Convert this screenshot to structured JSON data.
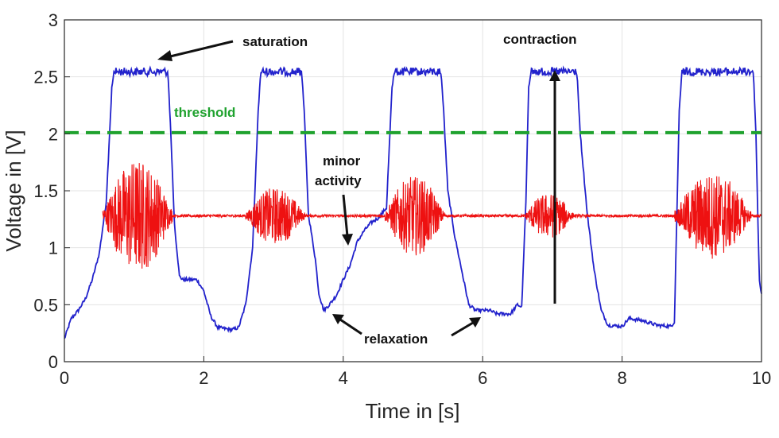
{
  "chart_data": {
    "type": "line",
    "title": "",
    "xlabel": "Time in [s]",
    "ylabel": "Voltage in [V]",
    "xlim": [
      0,
      10
    ],
    "ylim": [
      0,
      3
    ],
    "x_ticks": [
      "0",
      "2",
      "4",
      "6",
      "8",
      "10"
    ],
    "y_ticks": [
      "0",
      "0.5",
      "1",
      "1.5",
      "2",
      "2.5",
      "3"
    ],
    "grid": true,
    "series": [
      {
        "color": "#2222cc",
        "points": [
          [
            0.0,
            0.2
          ],
          [
            0.1,
            0.38
          ],
          [
            0.2,
            0.45
          ],
          [
            0.3,
            0.55
          ],
          [
            0.4,
            0.72
          ],
          [
            0.5,
            0.95
          ],
          [
            0.6,
            1.4
          ],
          [
            0.68,
            2.4
          ],
          [
            0.72,
            2.58
          ],
          [
            1.48,
            2.58
          ],
          [
            1.52,
            2.1
          ],
          [
            1.58,
            1.2
          ],
          [
            1.65,
            0.75
          ],
          [
            1.7,
            0.72
          ],
          [
            1.9,
            0.72
          ],
          [
            2.0,
            0.62
          ],
          [
            2.1,
            0.4
          ],
          [
            2.2,
            0.3
          ],
          [
            2.4,
            0.28
          ],
          [
            2.5,
            0.3
          ],
          [
            2.6,
            0.5
          ],
          [
            2.7,
            1.0
          ],
          [
            2.78,
            2.2
          ],
          [
            2.82,
            2.58
          ],
          [
            3.4,
            2.58
          ],
          [
            3.44,
            2.2
          ],
          [
            3.5,
            1.3
          ],
          [
            3.6,
            0.9
          ],
          [
            3.65,
            0.6
          ],
          [
            3.72,
            0.45
          ],
          [
            3.8,
            0.5
          ],
          [
            3.9,
            0.58
          ],
          [
            4.0,
            0.72
          ],
          [
            4.1,
            0.85
          ],
          [
            4.2,
            1.05
          ],
          [
            4.3,
            1.15
          ],
          [
            4.4,
            1.22
          ],
          [
            4.5,
            1.26
          ],
          [
            4.62,
            1.35
          ],
          [
            4.7,
            2.4
          ],
          [
            4.74,
            2.58
          ],
          [
            5.4,
            2.58
          ],
          [
            5.44,
            2.2
          ],
          [
            5.5,
            1.5
          ],
          [
            5.6,
            1.1
          ],
          [
            5.7,
            0.8
          ],
          [
            5.8,
            0.5
          ],
          [
            5.9,
            0.45
          ],
          [
            6.1,
            0.45
          ],
          [
            6.2,
            0.42
          ],
          [
            6.4,
            0.42
          ],
          [
            6.5,
            0.5
          ],
          [
            6.56,
            0.48
          ],
          [
            6.62,
            1.4
          ],
          [
            6.66,
            2.4
          ],
          [
            6.7,
            2.58
          ],
          [
            7.35,
            2.58
          ],
          [
            7.4,
            2.0
          ],
          [
            7.5,
            1.3
          ],
          [
            7.6,
            0.8
          ],
          [
            7.7,
            0.45
          ],
          [
            7.8,
            0.32
          ],
          [
            8.0,
            0.31
          ],
          [
            8.1,
            0.38
          ],
          [
            8.3,
            0.36
          ],
          [
            8.5,
            0.32
          ],
          [
            8.7,
            0.31
          ],
          [
            8.75,
            0.35
          ],
          [
            8.82,
            2.2
          ],
          [
            8.86,
            2.58
          ],
          [
            9.88,
            2.58
          ],
          [
            9.92,
            2.0
          ],
          [
            9.95,
            1.2
          ],
          [
            9.97,
            0.7
          ],
          [
            10.0,
            0.6
          ]
        ]
      },
      {
        "color": "#ee1111",
        "baseline": 1.28,
        "bursts": [
          {
            "start": 0.55,
            "end": 1.55,
            "amplitude": 0.5
          },
          {
            "start": 2.6,
            "end": 3.45,
            "amplitude": 0.25
          },
          {
            "start": 4.6,
            "end": 5.45,
            "amplitude": 0.35
          },
          {
            "start": 6.6,
            "end": 7.3,
            "amplitude": 0.2
          },
          {
            "start": 8.75,
            "end": 9.85,
            "amplitude": 0.38
          }
        ]
      },
      {
        "color": "#1fa22e",
        "points": [
          [
            0,
            2.01
          ],
          [
            10,
            2.01
          ]
        ]
      }
    ],
    "annotations": [
      {
        "text": "saturation",
        "x": 2.58,
        "y": 2.8
      },
      {
        "text": "contraction",
        "x": 6.8,
        "y": 2.8
      },
      {
        "text": "threshold",
        "x": 1.6,
        "y": 2.17
      },
      {
        "text": "minor",
        "x": 3.95,
        "y": 1.7
      },
      {
        "text": "activity",
        "x": 3.95,
        "y": 1.52
      },
      {
        "text": "relaxation",
        "x": 5.0,
        "y": 0.18
      }
    ]
  }
}
